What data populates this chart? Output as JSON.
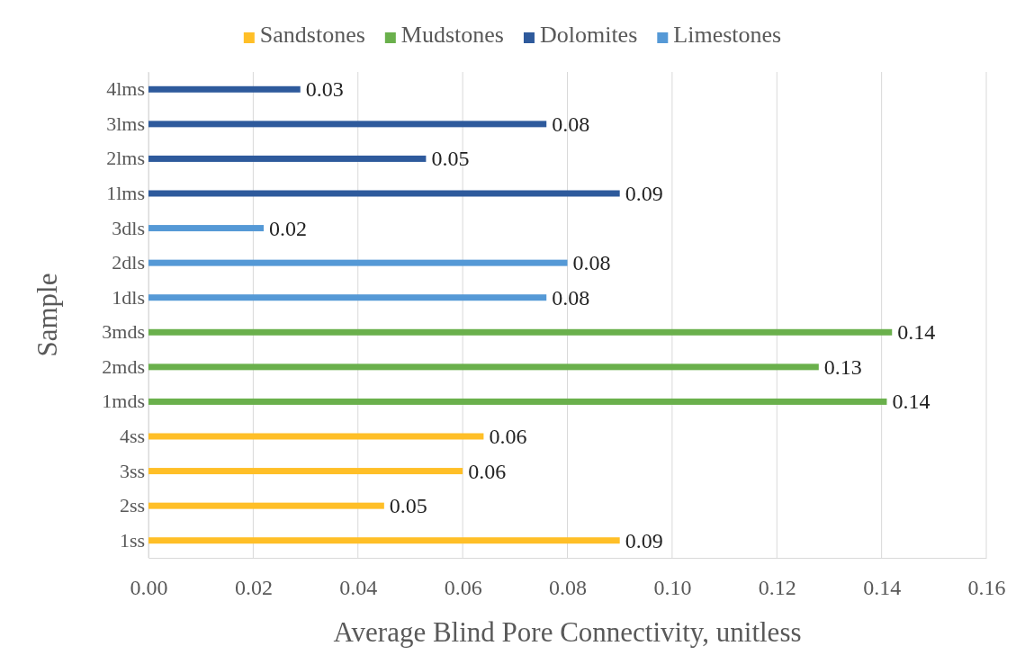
{
  "chart_data": {
    "type": "bar",
    "orientation": "horizontal",
    "xlabel": "Average Blind Pore Connectivity, unitless",
    "ylabel": "Sample",
    "categories": [
      "4lms",
      "3lms",
      "2lms",
      "1lms",
      "3dls",
      "2dls",
      "1dls",
      "3mds",
      "2mds",
      "1mds",
      "4ss",
      "3ss",
      "2ss",
      "1ss"
    ],
    "series": [
      {
        "name": "Sandstones",
        "color": "#ffbf27",
        "values": [
          null,
          null,
          null,
          null,
          null,
          null,
          null,
          null,
          null,
          null,
          0.064,
          0.06,
          0.045,
          0.09
        ],
        "value_labels": [
          null,
          null,
          null,
          null,
          null,
          null,
          null,
          null,
          null,
          null,
          "0.06",
          "0.06",
          "0.05",
          "0.09"
        ]
      },
      {
        "name": "Mudstones",
        "color": "#6ab04c",
        "values": [
          null,
          null,
          null,
          null,
          null,
          null,
          null,
          0.142,
          0.128,
          0.141,
          null,
          null,
          null,
          null
        ],
        "value_labels": [
          null,
          null,
          null,
          null,
          null,
          null,
          null,
          "0.14",
          "0.13",
          "0.14",
          null,
          null,
          null,
          null
        ]
      },
      {
        "name": "Dolomites",
        "color": "#2e5a9c",
        "values": [
          0.029,
          0.076,
          0.053,
          0.09,
          null,
          null,
          null,
          null,
          null,
          null,
          null,
          null,
          null,
          null
        ],
        "value_labels": [
          "0.03",
          "0.08",
          "0.05",
          "0.09",
          null,
          null,
          null,
          null,
          null,
          null,
          null,
          null,
          null,
          null
        ]
      },
      {
        "name": "Limestones",
        "color": "#5599d6",
        "values": [
          null,
          null,
          null,
          null,
          0.022,
          0.08,
          0.076,
          null,
          null,
          null,
          null,
          null,
          null,
          null
        ],
        "value_labels": [
          null,
          null,
          null,
          null,
          "0.02",
          "0.08",
          "0.08",
          null,
          null,
          null,
          null,
          null,
          null,
          null
        ]
      }
    ],
    "xlim": [
      0,
      0.16
    ],
    "xticks": [
      {
        "value": 0,
        "label": "0.00"
      },
      {
        "value": 0.02,
        "label": "0.02"
      },
      {
        "value": 0.04,
        "label": "0.04"
      },
      {
        "value": 0.06,
        "label": "0.06"
      },
      {
        "value": 0.08,
        "label": "0.08"
      },
      {
        "value": 0.1,
        "label": "0.10"
      },
      {
        "value": 0.12,
        "label": "0.12"
      },
      {
        "value": 0.14,
        "label": "0.14"
      },
      {
        "value": 0.16,
        "label": "0.16"
      }
    ],
    "grid": "x",
    "legend": "top"
  }
}
